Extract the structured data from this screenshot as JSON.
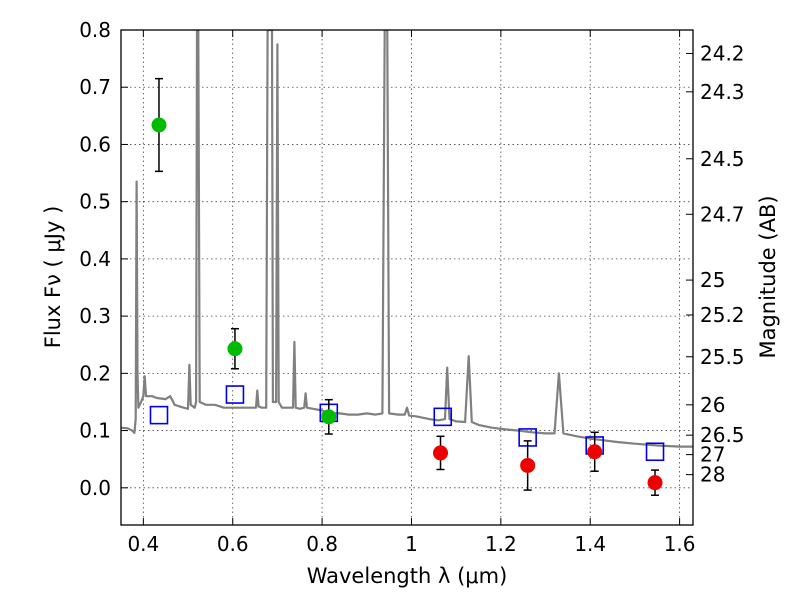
{
  "chart_data": {
    "type": "scatter",
    "xlabel": "Wavelength  λ (μm)",
    "ylabel": "Flux  Fν  ( μJy )",
    "ylabel_right": "Magnitude (AB)",
    "xlim": [
      0.35,
      1.63
    ],
    "ylim": [
      -0.065,
      0.8
    ],
    "grid": true,
    "x_ticks": [
      {
        "v": 0.4,
        "label": "0.4"
      },
      {
        "v": 0.6,
        "label": "0.6"
      },
      {
        "v": 0.8,
        "label": "0.8"
      },
      {
        "v": 1.0,
        "label": "1"
      },
      {
        "v": 1.2,
        "label": "1.2"
      },
      {
        "v": 1.4,
        "label": "1.4"
      },
      {
        "v": 1.6,
        "label": "1.6"
      }
    ],
    "y_ticks": [
      {
        "v": 0.0,
        "label": "0.0"
      },
      {
        "v": 0.1,
        "label": "0.1"
      },
      {
        "v": 0.2,
        "label": "0.2"
      },
      {
        "v": 0.3,
        "label": "0.3"
      },
      {
        "v": 0.4,
        "label": "0.4"
      },
      {
        "v": 0.5,
        "label": "0.5"
      },
      {
        "v": 0.6,
        "label": "0.6"
      },
      {
        "v": 0.7,
        "label": "0.7"
      },
      {
        "v": 0.8,
        "label": "0.8"
      }
    ],
    "mag_ticks": [
      {
        "v": 0.759,
        "label": "24.2"
      },
      {
        "v": 0.692,
        "label": "24.3"
      },
      {
        "v": 0.575,
        "label": "24.5"
      },
      {
        "v": 0.478,
        "label": "24.7"
      },
      {
        "v": 0.363,
        "label": "25"
      },
      {
        "v": 0.302,
        "label": "25.2"
      },
      {
        "v": 0.229,
        "label": "25.5"
      },
      {
        "v": 0.145,
        "label": "26"
      },
      {
        "v": 0.092,
        "label": "26.5"
      },
      {
        "v": 0.058,
        "label": "27"
      },
      {
        "v": 0.023,
        "label": "28"
      }
    ],
    "series": [
      {
        "kind": "spectrum",
        "color": "#808080",
        "points": [
          [
            0.35,
            0.105
          ],
          [
            0.365,
            0.104
          ],
          [
            0.375,
            0.1
          ],
          [
            0.38,
            0.096
          ],
          [
            0.383,
            0.12
          ],
          [
            0.385,
            0.535
          ],
          [
            0.387,
            0.2
          ],
          [
            0.389,
            0.14
          ],
          [
            0.395,
            0.15
          ],
          [
            0.4,
            0.16
          ],
          [
            0.403,
            0.195
          ],
          [
            0.406,
            0.16
          ],
          [
            0.42,
            0.16
          ],
          [
            0.43,
            0.157
          ],
          [
            0.45,
            0.155
          ],
          [
            0.46,
            0.16
          ],
          [
            0.47,
            0.145
          ],
          [
            0.49,
            0.14
          ],
          [
            0.5,
            0.138
          ],
          [
            0.503,
            0.215
          ],
          [
            0.506,
            0.145
          ],
          [
            0.515,
            0.14
          ],
          [
            0.518,
            0.15
          ],
          [
            0.52,
            0.8
          ],
          [
            0.523,
            0.8
          ],
          [
            0.526,
            0.15
          ],
          [
            0.54,
            0.145
          ],
          [
            0.56,
            0.145
          ],
          [
            0.58,
            0.14
          ],
          [
            0.6,
            0.14
          ],
          [
            0.62,
            0.14
          ],
          [
            0.64,
            0.14
          ],
          [
            0.652,
            0.14
          ],
          [
            0.655,
            0.17
          ],
          [
            0.658,
            0.142
          ],
          [
            0.665,
            0.14
          ],
          [
            0.675,
            0.14
          ],
          [
            0.678,
            0.8
          ],
          [
            0.688,
            0.8
          ],
          [
            0.69,
            0.15
          ],
          [
            0.697,
            0.15
          ],
          [
            0.7,
            0.775
          ],
          [
            0.703,
            0.15
          ],
          [
            0.71,
            0.14
          ],
          [
            0.72,
            0.14
          ],
          [
            0.735,
            0.14
          ],
          [
            0.738,
            0.255
          ],
          [
            0.741,
            0.14
          ],
          [
            0.75,
            0.138
          ],
          [
            0.76,
            0.14
          ],
          [
            0.763,
            0.165
          ],
          [
            0.766,
            0.14
          ],
          [
            0.78,
            0.138
          ],
          [
            0.8,
            0.135
          ],
          [
            0.82,
            0.13
          ],
          [
            0.84,
            0.13
          ],
          [
            0.86,
            0.128
          ],
          [
            0.88,
            0.128
          ],
          [
            0.9,
            0.13
          ],
          [
            0.92,
            0.128
          ],
          [
            0.935,
            0.13
          ],
          [
            0.94,
            0.8
          ],
          [
            0.946,
            0.8
          ],
          [
            0.95,
            0.13
          ],
          [
            0.97,
            0.128
          ],
          [
            0.985,
            0.128
          ],
          [
            0.99,
            0.14
          ],
          [
            0.995,
            0.126
          ],
          [
            1.01,
            0.125
          ],
          [
            1.04,
            0.12
          ],
          [
            1.06,
            0.118
          ],
          [
            1.075,
            0.12
          ],
          [
            1.08,
            0.21
          ],
          [
            1.085,
            0.12
          ],
          [
            1.1,
            0.116
          ],
          [
            1.12,
            0.115
          ],
          [
            1.128,
            0.23
          ],
          [
            1.135,
            0.115
          ],
          [
            1.15,
            0.11
          ],
          [
            1.18,
            0.105
          ],
          [
            1.21,
            0.102
          ],
          [
            1.24,
            0.1
          ],
          [
            1.27,
            0.097
          ],
          [
            1.3,
            0.095
          ],
          [
            1.32,
            0.095
          ],
          [
            1.33,
            0.2
          ],
          [
            1.34,
            0.095
          ],
          [
            1.37,
            0.09
          ],
          [
            1.4,
            0.086
          ],
          [
            1.43,
            0.083
          ],
          [
            1.46,
            0.08
          ],
          [
            1.5,
            0.077
          ],
          [
            1.55,
            0.074
          ],
          [
            1.6,
            0.072
          ],
          [
            1.63,
            0.072
          ]
        ]
      },
      {
        "kind": "points",
        "marker": "open-square",
        "color": "#0000ee",
        "points": [
          {
            "x": 0.435,
            "y": 0.127
          },
          {
            "x": 0.605,
            "y": 0.163
          },
          {
            "x": 0.815,
            "y": 0.131
          },
          {
            "x": 1.07,
            "y": 0.124
          },
          {
            "x": 1.26,
            "y": 0.088
          },
          {
            "x": 1.41,
            "y": 0.074
          },
          {
            "x": 1.545,
            "y": 0.063
          }
        ]
      },
      {
        "kind": "points",
        "marker": "filled-circle",
        "color": "#00bb00",
        "points": [
          {
            "x": 0.435,
            "y": 0.634,
            "err": 0.081
          },
          {
            "x": 0.605,
            "y": 0.243,
            "err": 0.035
          },
          {
            "x": 0.815,
            "y": 0.124,
            "err": 0.03
          }
        ]
      },
      {
        "kind": "points",
        "marker": "filled-circle",
        "color": "#ee0000",
        "points": [
          {
            "x": 1.065,
            "y": 0.061,
            "err": 0.029
          },
          {
            "x": 1.26,
            "y": 0.039,
            "err": 0.043
          },
          {
            "x": 1.41,
            "y": 0.063,
            "err": 0.034
          },
          {
            "x": 1.545,
            "y": 0.009,
            "err": 0.022
          }
        ]
      }
    ]
  }
}
